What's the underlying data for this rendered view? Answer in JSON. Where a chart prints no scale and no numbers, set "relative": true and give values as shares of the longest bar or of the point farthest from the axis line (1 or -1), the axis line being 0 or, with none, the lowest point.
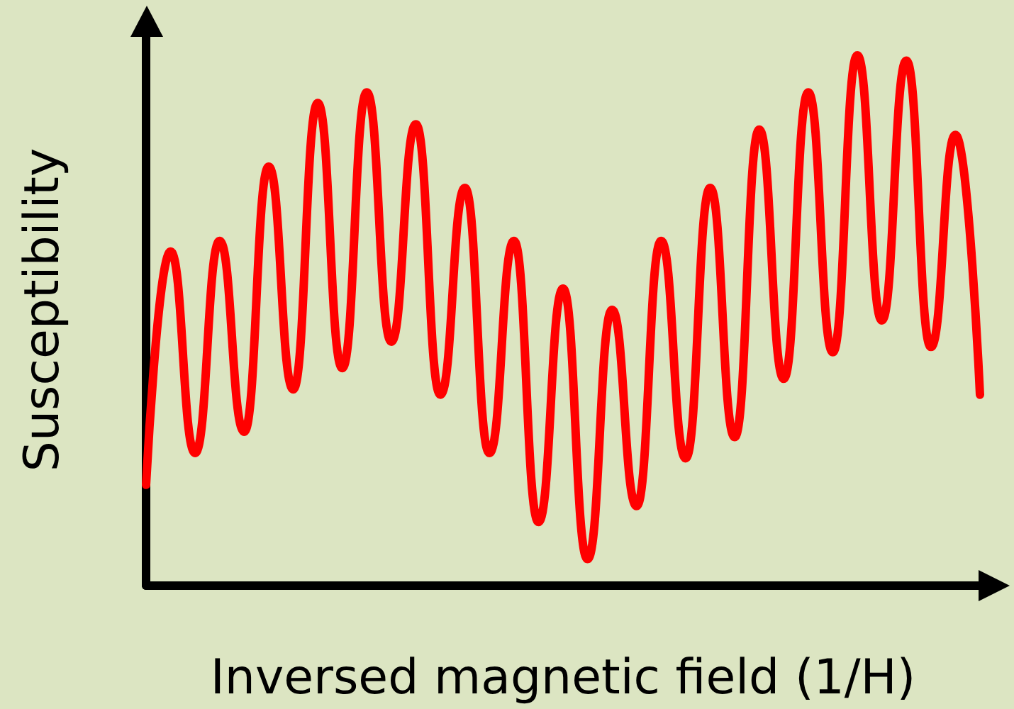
{
  "chart_data": {
    "type": "line",
    "relative": true,
    "xlabel": "Inversed magnetic field (1/H)",
    "ylabel": "Susceptibility",
    "categories": [
      null,
      null,
      null,
      null,
      null,
      null,
      null,
      null,
      null,
      null,
      null,
      null,
      null,
      null,
      null,
      null,
      null,
      null,
      null,
      null,
      null,
      null,
      null,
      null,
      null,
      null,
      null,
      null,
      null,
      null,
      null,
      null,
      null,
      null,
      null
    ],
    "series": [
      {
        "color": "#ff0000",
        "values": [
          0.19,
          0.63,
          0.25,
          0.65,
          0.29,
          0.79,
          0.37,
          0.91,
          0.41,
          0.93,
          0.46,
          0.87,
          0.36,
          0.75,
          0.25,
          0.65,
          0.12,
          0.56,
          0.05,
          0.52,
          0.15,
          0.65,
          0.24,
          0.75,
          0.28,
          0.86,
          0.39,
          0.93,
          0.44,
          1,
          0.5,
          0.99,
          0.45,
          0.85,
          0.36
        ]
      }
    ],
    "grid": false,
    "marker": "none",
    "line_style": "solid"
  }
}
